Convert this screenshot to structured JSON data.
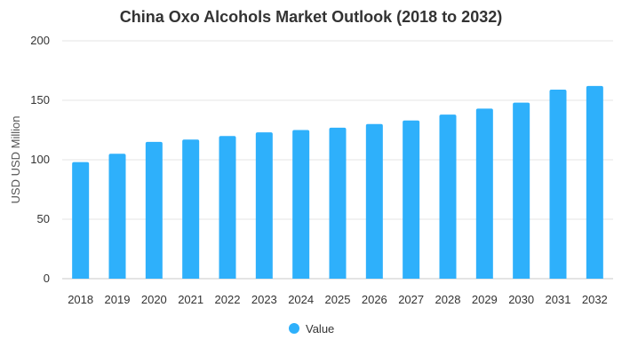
{
  "chart_data": {
    "type": "bar",
    "title": "China Oxo Alcohols Market Outlook (2018 to 2032)",
    "xlabel": "",
    "ylabel": "USD USD Million",
    "ylim": [
      0,
      200
    ],
    "yticks": [
      0,
      50,
      100,
      150,
      200
    ],
    "grid": true,
    "legend_position": "bottom",
    "categories": [
      "2018",
      "2019",
      "2020",
      "2021",
      "2022",
      "2023",
      "2024",
      "2025",
      "2026",
      "2027",
      "2028",
      "2029",
      "2030",
      "2031",
      "2032"
    ],
    "series": [
      {
        "name": "Value",
        "color": "#2eb0fb",
        "values": [
          98,
          105,
          115,
          117,
          120,
          123,
          125,
          127,
          130,
          133,
          138,
          143,
          148,
          159,
          162
        ]
      }
    ]
  }
}
